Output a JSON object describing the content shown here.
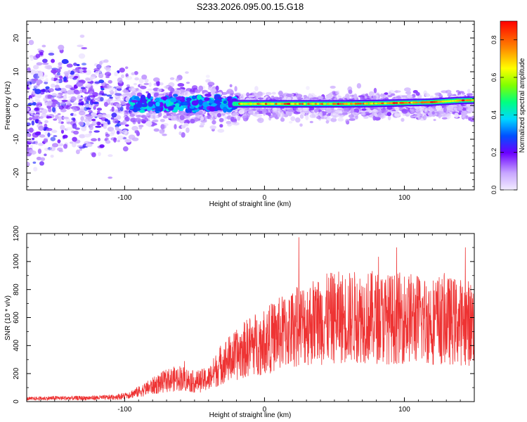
{
  "title": "S233.2026.095.00.15.G18",
  "colorbar": {
    "label": "Normalized spectral amplitude",
    "range": [
      0.0,
      0.9
    ],
    "ticks": [
      "0.0",
      "0.2",
      "0.4",
      "0.6",
      "0.8"
    ]
  },
  "chart_data": [
    {
      "type": "heatmap",
      "xlabel": "Height of straight line (km)",
      "ylabel": "Frequency (Hz)",
      "xlim": [
        -170,
        150
      ],
      "ylim": [
        -25,
        25
      ],
      "x_ticks": [
        "-100",
        "0",
        "100"
      ],
      "y_ticks": [
        "-20",
        "-10",
        "0",
        "10",
        "20"
      ],
      "ridge": {
        "description_values": "dominant frequency track vs height",
        "x": [
          -20,
          0,
          20,
          40,
          60,
          80,
          100,
          120,
          140,
          150
        ],
        "y": [
          0.5,
          0.5,
          0.5,
          0.5,
          0.5,
          0.6,
          0.8,
          1.0,
          1.5,
          1.6
        ]
      }
    },
    {
      "type": "line",
      "xlabel": "Height of straight line (km)",
      "ylabel": "SNR (10 * v/v)",
      "xlim": [
        -170,
        150
      ],
      "ylim": [
        0,
        1200
      ],
      "x_ticks": [
        "-100",
        "0",
        "100"
      ],
      "y_ticks": [
        "0",
        "200",
        "400",
        "600",
        "800",
        "1000",
        "1200"
      ],
      "series": [
        {
          "color": "#ee3333",
          "x": [
            -170,
            -150,
            -130,
            -110,
            -100,
            -90,
            -80,
            -70,
            -60,
            -50,
            -40,
            -30,
            -20,
            -10,
            0,
            10,
            20,
            30,
            40,
            50,
            60,
            70,
            80,
            90,
            100,
            110,
            120,
            130,
            140,
            150
          ],
          "y": [
            20,
            25,
            25,
            30,
            40,
            70,
            110,
            150,
            170,
            140,
            160,
            280,
            330,
            400,
            430,
            480,
            520,
            560,
            580,
            600,
            600,
            610,
            600,
            590,
            600,
            590,
            580,
            580,
            570,
            560
          ]
        }
      ]
    }
  ]
}
